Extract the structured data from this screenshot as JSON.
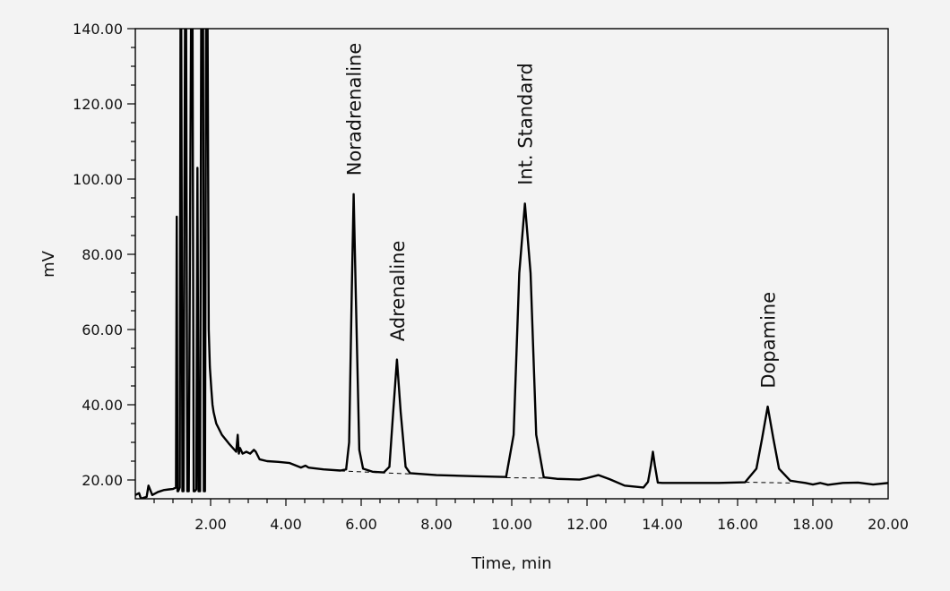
{
  "chart_data": {
    "type": "line",
    "title": "",
    "xlabel": "Time, min",
    "ylabel": "mV",
    "xlim": [
      0,
      20
    ],
    "ylim": [
      15,
      140
    ],
    "x_ticks": [
      "2.00",
      "4.00",
      "6.00",
      "8.00",
      "10.00",
      "12.00",
      "14.00",
      "16.00",
      "18.00",
      "20.00"
    ],
    "y_ticks": [
      "20.00",
      "40.00",
      "60.00",
      "80.00",
      "100.00",
      "120.00",
      "140.00"
    ],
    "grid": false,
    "legend": "none",
    "peaks": [
      {
        "name": "Noradrenaline",
        "time": 5.8,
        "height": 96
      },
      {
        "name": "Adrenaline",
        "time": 6.95,
        "height": 52
      },
      {
        "name": "Int. Standard",
        "time": 10.35,
        "height": 93.5
      },
      {
        "name": "Dopamine",
        "time": 16.8,
        "height": 39.5
      }
    ],
    "minor_peaks": [
      {
        "time": 13.75,
        "height": 27.5
      }
    ],
    "baseline_segments": [
      {
        "x": [
          5.45,
          7.3
        ],
        "y": [
          22.4,
          21.6
        ]
      },
      {
        "x": [
          9.85,
          10.85
        ],
        "y": [
          20.6,
          20.5
        ]
      },
      {
        "x": [
          16.2,
          17.4
        ],
        "y": [
          19.4,
          19.2
        ]
      }
    ],
    "series": [
      {
        "values_x": [
          0,
          0.1,
          0.15,
          0.2,
          0.3,
          0.35,
          0.45,
          0.6,
          0.75,
          0.9,
          1.0,
          1.08,
          1.1,
          1.12,
          1.14,
          1.18,
          1.2,
          1.22,
          1.25,
          1.28,
          1.32,
          1.35,
          1.38,
          1.42,
          1.48,
          1.52,
          1.55,
          1.58,
          1.62,
          1.65,
          1.68,
          1.7,
          1.72,
          1.75,
          1.78,
          1.8,
          1.82,
          1.85,
          1.88,
          1.9,
          1.92,
          1.95,
          1.98,
          2.02,
          2.05,
          2.08,
          2.15,
          2.3,
          2.5,
          2.68,
          2.72,
          2.75,
          2.78,
          2.85,
          2.95,
          3.05,
          3.15,
          3.2,
          3.3,
          3.5,
          3.8,
          4.1,
          4.4,
          4.52,
          4.6,
          5.0,
          5.45,
          5.6,
          5.68,
          5.75,
          5.8,
          5.86,
          5.95,
          6.05,
          6.3,
          6.6,
          6.75,
          6.85,
          6.95,
          7.05,
          7.18,
          7.3,
          8.0,
          9.0,
          9.85,
          10.05,
          10.2,
          10.35,
          10.5,
          10.65,
          10.85,
          11.2,
          11.8,
          12.0,
          12.3,
          12.6,
          13.0,
          13.5,
          13.62,
          13.7,
          13.75,
          13.8,
          13.88,
          14.0,
          14.5,
          15.5,
          16.2,
          16.5,
          16.65,
          16.8,
          16.95,
          17.1,
          17.4,
          17.8,
          18.0,
          18.2,
          18.4,
          18.8,
          19.2,
          19.6,
          20.0
        ],
        "values_y": [
          16,
          16.5,
          15,
          15.2,
          15.5,
          18.5,
          16,
          16.8,
          17.3,
          17.5,
          17.6,
          18,
          90,
          17,
          17,
          18,
          140,
          140,
          17,
          17,
          140,
          140,
          17,
          17,
          140,
          140,
          17,
          17,
          17.5,
          103,
          17,
          17,
          17,
          140,
          140,
          140,
          17,
          17,
          140,
          140,
          140,
          60,
          50,
          44,
          40,
          38,
          35,
          32,
          29.5,
          27.5,
          32,
          27,
          28.5,
          27,
          27.5,
          27,
          28,
          27.5,
          25.5,
          25,
          24.8,
          24.5,
          23.3,
          23.8,
          23.3,
          22.8,
          22.5,
          22.8,
          30,
          70,
          96,
          68,
          28,
          23,
          22.2,
          22,
          23.5,
          38,
          52,
          38,
          23.5,
          21.8,
          21.3,
          21,
          20.8,
          32,
          75,
          93.5,
          75,
          32,
          20.7,
          20.3,
          20.1,
          20.5,
          21.3,
          20.2,
          18.5,
          18,
          19.5,
          24,
          27.5,
          24,
          19.3,
          19.2,
          19.2,
          19.2,
          19.4,
          23,
          31,
          39.5,
          31,
          23,
          19.8,
          19.2,
          18.8,
          19.2,
          18.7,
          19.2,
          19.3,
          18.8,
          19.2
        ]
      }
    ]
  }
}
